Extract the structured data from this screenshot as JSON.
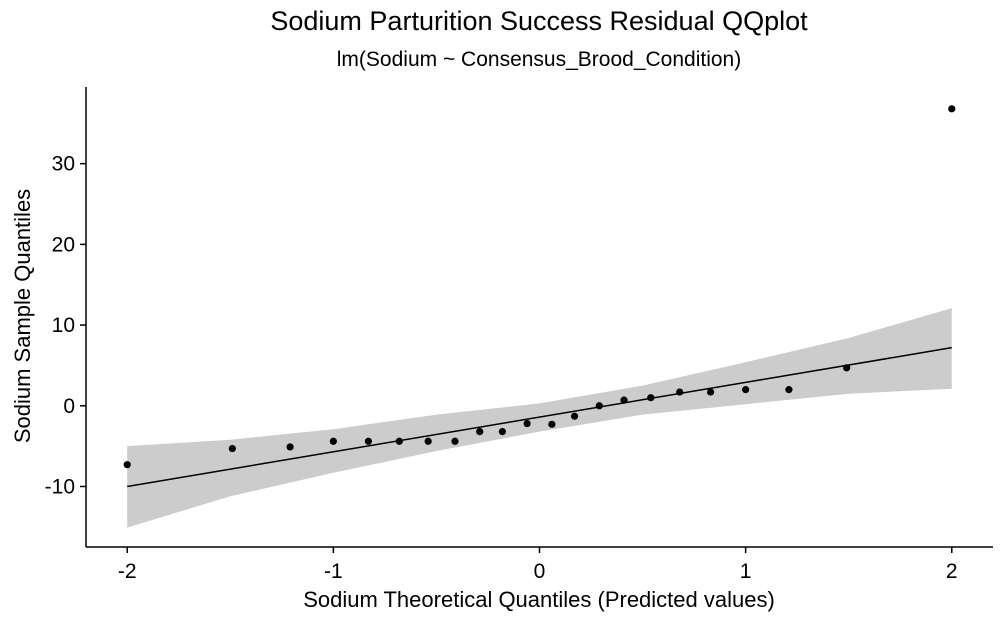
{
  "chart_data": {
    "type": "scatter",
    "title": "Sodium Parturition Success Residual QQplot",
    "subtitle": "lm(Sodium ~ Consensus_Brood_Condition)",
    "xlabel": "Sodium Theoretical Quantiles (Predicted values)",
    "ylabel": "Sodium Sample Quantiles",
    "xlim": [
      -2.2,
      2.2
    ],
    "ylim": [
      -17.5,
      39.5
    ],
    "xticks": [
      -2,
      -1,
      0,
      1,
      2
    ],
    "xtick_labels": [
      "-2",
      "-1",
      "0",
      "1",
      "2"
    ],
    "yticks": [
      -10,
      0,
      10,
      20,
      30
    ],
    "ytick_labels": [
      "-10",
      "0",
      "10",
      "20",
      "30"
    ],
    "grid": false,
    "legend": "none",
    "colors": {
      "points": "#000000",
      "line": "#000000",
      "band": "#cccccc"
    },
    "points": {
      "x": [
        -2.0,
        -1.49,
        -1.21,
        -1.0,
        -0.83,
        -0.68,
        -0.54,
        -0.41,
        -0.29,
        -0.18,
        -0.06,
        0.06,
        0.17,
        0.29,
        0.41,
        0.54,
        0.68,
        0.83,
        1.0,
        1.21,
        1.49,
        2.0
      ],
      "y": [
        -7.3,
        -5.3,
        -5.1,
        -4.4,
        -4.4,
        -4.4,
        -4.4,
        -4.4,
        -3.2,
        -3.2,
        -2.2,
        -2.3,
        -1.3,
        0.0,
        0.7,
        1.0,
        1.7,
        1.7,
        2.0,
        2.0,
        4.7,
        36.8
      ]
    },
    "reference_line": {
      "x": [
        -2.0,
        2.0
      ],
      "y": [
        -10.0,
        7.2
      ]
    },
    "confidence_band": {
      "x": [
        -2.0,
        -1.5,
        -1.0,
        -0.5,
        0.0,
        0.5,
        1.0,
        1.5,
        2.0
      ],
      "lower": [
        -15.1,
        -11.2,
        -8.3,
        -5.6,
        -3.2,
        -1.1,
        0.2,
        1.5,
        2.1
      ],
      "upper": [
        -5.0,
        -4.2,
        -2.9,
        -1.1,
        0.3,
        2.5,
        5.4,
        8.4,
        12.1
      ]
    }
  }
}
